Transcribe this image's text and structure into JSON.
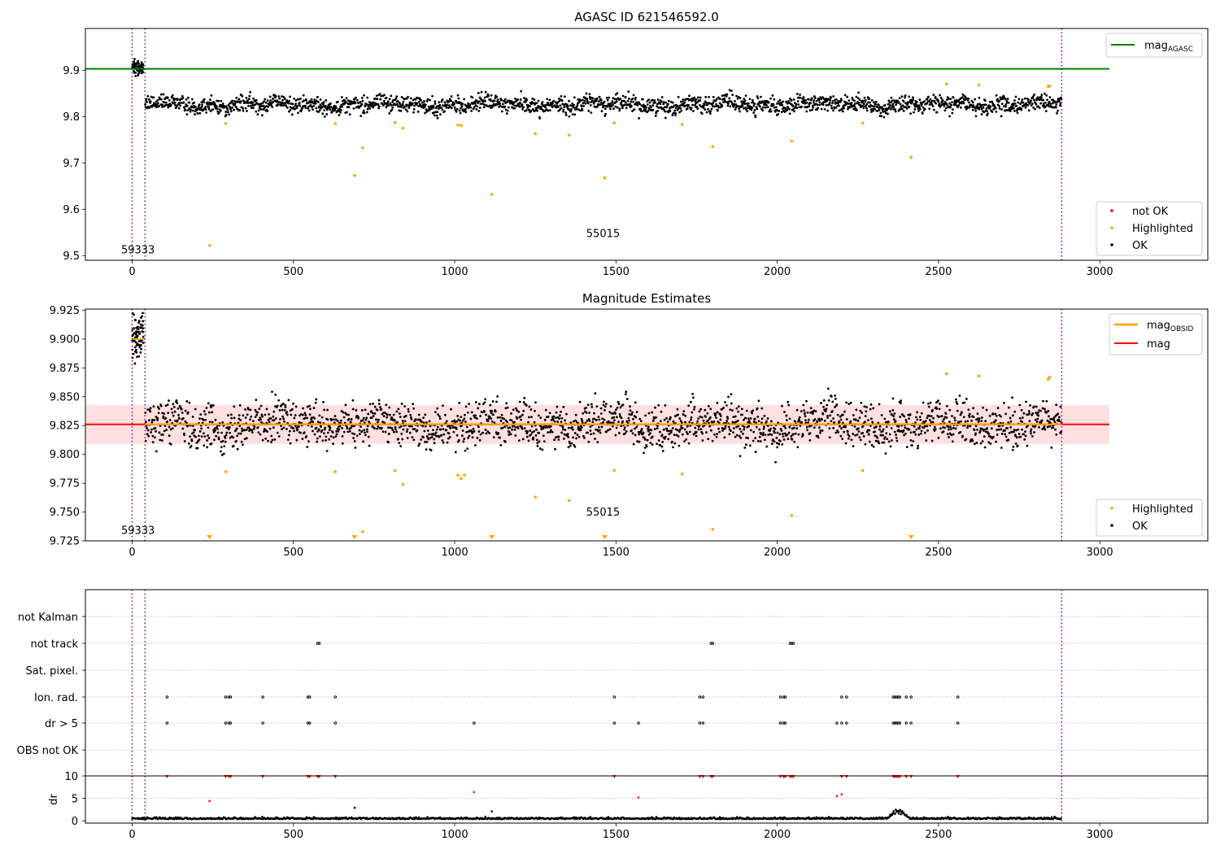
{
  "chart_data": [
    {
      "type": "scatter",
      "title": "AGASC ID 621546592.0",
      "xlim": [
        -145,
        3335
      ],
      "ylim": [
        9.49,
        9.99
      ],
      "xticks": [
        0,
        500,
        1000,
        1500,
        2000,
        2500,
        3000
      ],
      "yticks": [
        9.5,
        9.6,
        9.7,
        9.8,
        9.9
      ],
      "legend_position": "top-right and lower-right",
      "reference_lines": [
        {
          "name": "mag_AGASC",
          "y": 9.903,
          "x_range": [
            -145,
            3030
          ],
          "color": "#008000"
        }
      ],
      "obsid_boundaries": [
        0,
        40,
        2882
      ],
      "obsid_labels": [
        {
          "text": "59333",
          "x": 18,
          "y": 9.505
        },
        {
          "text": "55015",
          "x": 1460,
          "y": 9.54
        }
      ],
      "series": [
        {
          "name": "not OK",
          "color": "#ff0000",
          "points": []
        },
        {
          "name": "Highlighted",
          "color": "#ffa500",
          "points": [
            [
              240,
              9.522
            ],
            [
              290,
              9.785
            ],
            [
              630,
              9.785
            ],
            [
              690,
              9.673
            ],
            [
              715,
              9.733
            ],
            [
              815,
              9.787
            ],
            [
              840,
              9.775
            ],
            [
              1010,
              9.782
            ],
            [
              1020,
              9.781
            ],
            [
              1115,
              9.632
            ],
            [
              1250,
              9.763
            ],
            [
              1355,
              9.76
            ],
            [
              1465,
              9.668
            ],
            [
              1495,
              9.786
            ],
            [
              1705,
              9.783
            ],
            [
              1800,
              9.735
            ],
            [
              2045,
              9.747
            ],
            [
              2265,
              9.786
            ],
            [
              2415,
              9.712
            ],
            [
              2525,
              9.87
            ],
            [
              2625,
              9.868
            ],
            [
              2840,
              9.865
            ],
            [
              2845,
              9.866
            ]
          ]
        },
        {
          "name": "OK",
          "color": "#000000",
          "trend": {
            "x_range": [
              40,
              2882
            ],
            "level": 9.826,
            "spread": 0.013,
            "first_obsid_level": 9.905,
            "first_obsid_spread": 0.013
          }
        }
      ],
      "legend": {
        "top": [
          "mag_AGASC"
        ],
        "bottom": [
          "not OK",
          "Highlighted",
          "OK"
        ]
      }
    },
    {
      "type": "scatter",
      "title": "Magnitude Estimates",
      "xlim": [
        -145,
        3335
      ],
      "ylim": [
        9.725,
        9.926
      ],
      "xticks": [
        0,
        500,
        1000,
        1500,
        2000,
        2500,
        3000
      ],
      "yticks": [
        9.725,
        9.75,
        9.775,
        9.8,
        9.825,
        9.85,
        9.875,
        9.9,
        9.925
      ],
      "reference_lines": [
        {
          "name": "mag_OBSID",
          "color": "#ffa500",
          "segments": [
            [
              0,
              40,
              9.9
            ],
            [
              40,
              2882,
              9.826
            ]
          ]
        },
        {
          "name": "mag",
          "y": 9.826,
          "x_range": [
            -145,
            3030
          ],
          "color": "#ff0000",
          "band": [
            9.809,
            9.843
          ]
        }
      ],
      "obsid_boundaries": [
        0,
        40,
        2882
      ],
      "obsid_labels": [
        {
          "text": "59333",
          "x": 18,
          "y": 9.731
        },
        {
          "text": "55015",
          "x": 1460,
          "y": 9.747
        }
      ],
      "series": [
        {
          "name": "Highlighted",
          "color": "#ffa500",
          "points": [
            [
              290,
              9.785
            ],
            [
              630,
              9.785
            ],
            [
              715,
              9.733
            ],
            [
              815,
              9.786
            ],
            [
              840,
              9.774
            ],
            [
              1010,
              9.782
            ],
            [
              1020,
              9.779
            ],
            [
              1030,
              9.782
            ],
            [
              1250,
              9.763
            ],
            [
              1355,
              9.76
            ],
            [
              1495,
              9.786
            ],
            [
              1705,
              9.783
            ],
            [
              1800,
              9.735
            ],
            [
              2045,
              9.747
            ],
            [
              2265,
              9.786
            ],
            [
              2525,
              9.87
            ],
            [
              2625,
              9.868
            ],
            [
              2840,
              9.865
            ],
            [
              2845,
              9.867
            ]
          ],
          "below_axis_x": [
            240,
            690,
            1115,
            1465,
            2415
          ]
        },
        {
          "name": "OK",
          "color": "#000000",
          "trend": {
            "x_range": [
              40,
              2882
            ],
            "level": 9.826,
            "spread": 0.013,
            "first_obsid_level": 9.905,
            "first_obsid_spread": 0.013
          }
        }
      ],
      "legend": {
        "top": [
          "mag_OBSID",
          "mag"
        ],
        "bottom": [
          "Highlighted",
          "OK"
        ]
      }
    },
    {
      "type": "scatter",
      "title": "",
      "xlim": [
        -145,
        3335
      ],
      "xticks": [
        0,
        500,
        1000,
        1500,
        2000,
        2500,
        3000
      ],
      "categories": [
        "not Kalman",
        "not track",
        "Sat. pixel.",
        "Ion. rad.",
        "dr > 5",
        "OBS not OK"
      ],
      "flags": {
        "not Kalman": [],
        "not track": [
          575,
          580,
          1795,
          1800,
          2040,
          2045,
          2050
        ],
        "Sat. pixel.": [],
        "Ion. rad.": [
          108,
          290,
          300,
          305,
          405,
          545,
          550,
          630,
          1495,
          1760,
          1770,
          2010,
          2020,
          2025,
          2200,
          2215,
          2360,
          2365,
          2370,
          2375,
          2380,
          2400,
          2415,
          2560
        ],
        "dr > 5": [
          108,
          290,
          300,
          305,
          405,
          545,
          550,
          630,
          1060,
          1495,
          1570,
          1760,
          1770,
          2010,
          2020,
          2025,
          2185,
          2200,
          2215,
          2360,
          2365,
          2370,
          2375,
          2380,
          2400,
          2415,
          2560
        ],
        "OBS not OK": []
      },
      "obsid_boundaries": [
        0,
        40,
        2882
      ],
      "dr_panel": {
        "ylabel": "dr",
        "ylim": [
          -0.5,
          10
        ],
        "yticks": [
          0,
          5,
          10
        ],
        "clipped_red_x": [
          108,
          290,
          300,
          305,
          405,
          545,
          550,
          575,
          580,
          630,
          1495,
          1760,
          1770,
          1795,
          1800,
          2010,
          2020,
          2025,
          2040,
          2045,
          2050,
          2200,
          2215,
          2360,
          2365,
          2370,
          2375,
          2380,
          2400,
          2415,
          2560
        ],
        "red_points": [
          [
            240,
            4.4
          ],
          [
            1060,
            6.4
          ],
          [
            1570,
            5.2
          ],
          [
            2185,
            5.5
          ],
          [
            2200,
            5.9
          ]
        ],
        "black_outliers": [
          [
            690,
            2.9
          ],
          [
            1115,
            2.1
          ]
        ],
        "baseline": 0.4,
        "bump": {
          "x_range": [
            2340,
            2410
          ],
          "peak": 2.0
        }
      }
    }
  ]
}
